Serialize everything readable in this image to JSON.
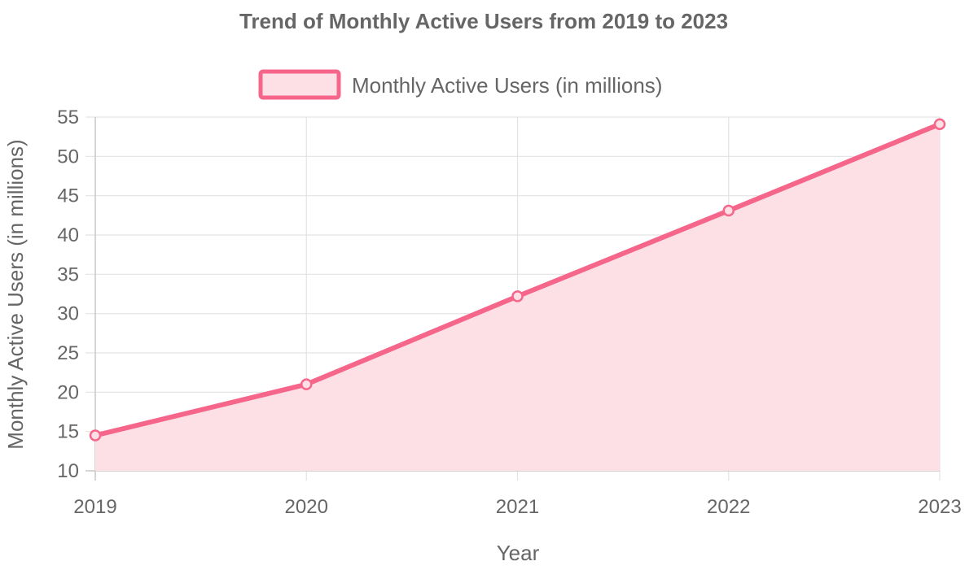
{
  "chart_data": {
    "type": "area",
    "title": "Trend of Monthly Active Users from 2019 to 2023",
    "xlabel": "Year",
    "ylabel": "Monthly Active Users (in millions)",
    "categories": [
      "2019",
      "2020",
      "2021",
      "2022",
      "2023"
    ],
    "series": [
      {
        "name": "Monthly Active Users (in millions)",
        "values": [
          14.5,
          21,
          32.2,
          43.1,
          54.1
        ]
      }
    ],
    "ylim": [
      10,
      55
    ],
    "yticks": [
      10,
      15,
      20,
      25,
      30,
      35,
      40,
      45,
      50,
      55
    ],
    "grid": true,
    "legend_position": "top",
    "colors": {
      "line": "#f5668a",
      "fill": "#fde0e6",
      "grid": "#e3e3e3",
      "text": "#666666"
    }
  }
}
